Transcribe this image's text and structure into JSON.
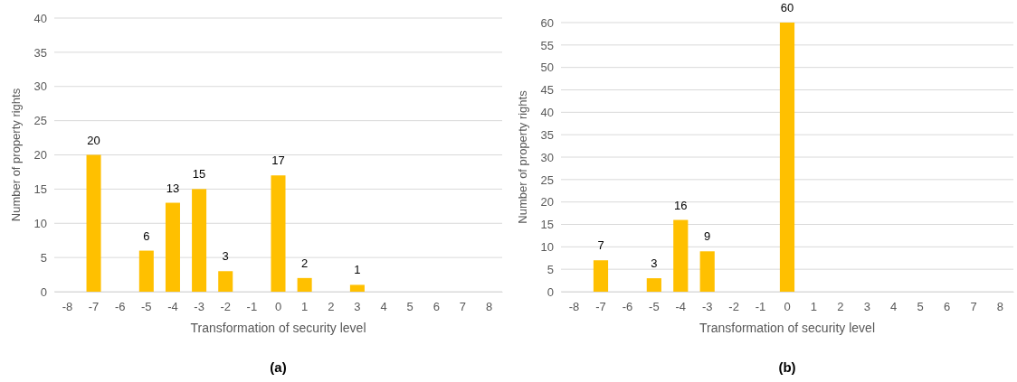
{
  "chart_data": [
    {
      "type": "bar",
      "categories": [
        "-8",
        "-7",
        "-6",
        "-5",
        "-4",
        "-3",
        "-2",
        "-1",
        "0",
        "1",
        "2",
        "3",
        "4",
        "5",
        "6",
        "7",
        "8"
      ],
      "xlabel": "Transformation of security level",
      "ylabel": "Number of property rights",
      "ylim": [
        0,
        40
      ],
      "yticks": [
        0,
        5,
        10,
        15,
        20,
        25,
        30,
        35,
        40
      ],
      "grid": "y",
      "color": "#ffc000",
      "values": [
        0,
        20,
        0,
        6,
        13,
        15,
        3,
        0,
        17,
        2,
        0,
        1,
        0,
        0,
        0,
        0,
        0
      ],
      "value_labels": [
        null,
        "20",
        null,
        "6",
        "13",
        "15",
        "3",
        null,
        "17",
        "2",
        null,
        "1",
        null,
        null,
        null,
        null,
        null
      ],
      "annotations": [
        "(a)"
      ]
    },
    {
      "type": "bar",
      "categories": [
        "-8",
        "-7",
        "-6",
        "-5",
        "-4",
        "-3",
        "-2",
        "-1",
        "0",
        "1",
        "2",
        "3",
        "4",
        "5",
        "6",
        "7",
        "8"
      ],
      "xlabel": "Transformation of security level",
      "ylabel": "Number of property rights",
      "ylim": [
        0,
        60
      ],
      "yticks": [
        0,
        5,
        10,
        15,
        20,
        25,
        30,
        35,
        40,
        45,
        50,
        55,
        60
      ],
      "grid": "y",
      "color": "#ffc000",
      "values": [
        0,
        7,
        0,
        3,
        16,
        9,
        0,
        0,
        60,
        0,
        0,
        0,
        0,
        0,
        0,
        0,
        0
      ],
      "value_labels": [
        null,
        "7",
        null,
        "3",
        "16",
        "9",
        null,
        null,
        "60",
        null,
        null,
        null,
        null,
        null,
        null,
        null,
        null
      ],
      "annotations": [
        "(b)"
      ]
    }
  ]
}
